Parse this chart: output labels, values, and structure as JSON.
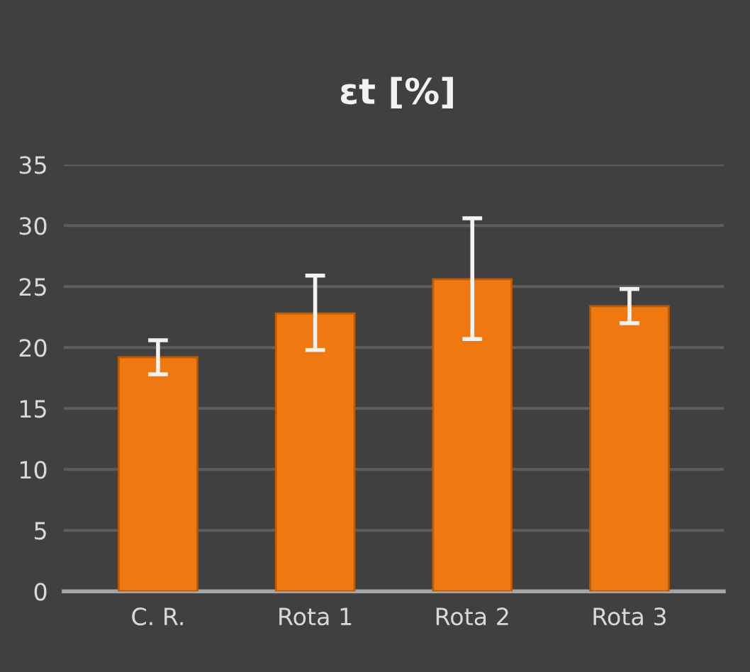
{
  "chart_data": {
    "type": "bar",
    "title": "εt [%]",
    "categories": [
      "C. R.",
      "Rota 1",
      "Rota 2",
      "Rota 3"
    ],
    "values": [
      19.2,
      22.8,
      25.6,
      23.4
    ],
    "errors": [
      [
        17.8,
        20.6
      ],
      [
        19.8,
        25.9
      ],
      [
        20.7,
        30.6
      ],
      [
        22.0,
        24.8
      ]
    ],
    "color": "#f07810",
    "ylim": [
      0,
      35
    ],
    "yticks": [
      0,
      5,
      10,
      15,
      20,
      25,
      30,
      35
    ],
    "grid": "y"
  }
}
